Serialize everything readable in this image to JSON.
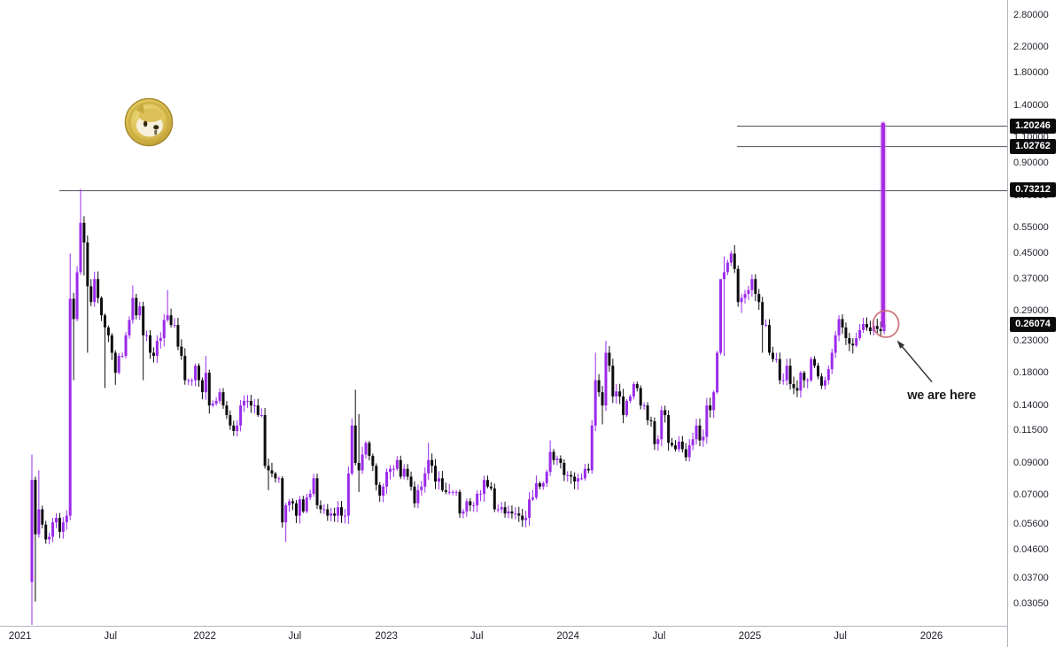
{
  "annotations": {
    "we_are_here": "we are here"
  },
  "axis": {
    "y_ticks": [
      {
        "label": "2.80000",
        "value": 2.8
      },
      {
        "label": "2.20000",
        "value": 2.2
      },
      {
        "label": "1.80000",
        "value": 1.8
      },
      {
        "label": "1.40000",
        "value": 1.4
      },
      {
        "label": "1.10000",
        "value": 1.1
      },
      {
        "label": "0.90000",
        "value": 0.9
      },
      {
        "label": "0.70000",
        "value": 0.7
      },
      {
        "label": "0.55000",
        "value": 0.55
      },
      {
        "label": "0.45000",
        "value": 0.45
      },
      {
        "label": "0.37000",
        "value": 0.37
      },
      {
        "label": "0.29000",
        "value": 0.29
      },
      {
        "label": "0.23000",
        "value": 0.23
      },
      {
        "label": "0.18000",
        "value": 0.18
      },
      {
        "label": "0.14000",
        "value": 0.14
      },
      {
        "label": "0.11500",
        "value": 0.115
      },
      {
        "label": "0.09000",
        "value": 0.09
      },
      {
        "label": "0.07000",
        "value": 0.07
      },
      {
        "label": "0.05600",
        "value": 0.056
      },
      {
        "label": "0.04600",
        "value": 0.046
      },
      {
        "label": "0.03700",
        "value": 0.037
      },
      {
        "label": "0.03050",
        "value": 0.0305
      }
    ],
    "x_ticks": [
      {
        "label": "2021",
        "week": -3.4
      },
      {
        "label": "Jul",
        "week": 22.6
      },
      {
        "label": "2022",
        "week": 49.7
      },
      {
        "label": "Jul",
        "week": 75.6
      },
      {
        "label": "2023",
        "week": 101.9
      },
      {
        "label": "Jul",
        "week": 127.9
      },
      {
        "label": "2024",
        "week": 154.1
      },
      {
        "label": "Jul",
        "week": 180.3
      },
      {
        "label": "2025",
        "week": 206.4
      },
      {
        "label": "Jul",
        "week": 232.4
      },
      {
        "label": "2026",
        "week": 258.6
      }
    ]
  },
  "chart_data": {
    "type": "candlestick",
    "scale": "log",
    "interval": "1W",
    "ylim": [
      0.0252,
      3.1
    ],
    "grid": false,
    "price_lines": [
      {
        "label": "1.20246",
        "value": 1.20246,
        "start_week": 202.7
      },
      {
        "label": "1.02762",
        "value": 1.02762,
        "start_week": 202.7
      },
      {
        "label": "0.73212",
        "value": 0.73212,
        "start_week": 7.9
      }
    ],
    "last_price": {
      "label": "0.26074",
      "value": 0.26074
    },
    "projection": {
      "from_price": 0.258,
      "to_price": 1.215,
      "week": 244.7
    },
    "highlight_circle": {
      "price": 0.262,
      "week": 245.5,
      "radius_px": 14.5
    },
    "first_open": 0.036,
    "weekly_closes": [
      0.079,
      0.052,
      0.063,
      0.056,
      0.05,
      0.051,
      0.057,
      0.059,
      0.053,
      0.057,
      0.06,
      0.318,
      0.272,
      0.39,
      0.57,
      0.49,
      0.35,
      0.31,
      0.37,
      0.32,
      0.28,
      0.255,
      0.24,
      0.21,
      0.18,
      0.205,
      0.205,
      0.24,
      0.27,
      0.32,
      0.28,
      0.3,
      0.24,
      0.24,
      0.21,
      0.205,
      0.23,
      0.235,
      0.27,
      0.28,
      0.26,
      0.26,
      0.22,
      0.205,
      0.17,
      0.17,
      0.17,
      0.19,
      0.17,
      0.155,
      0.18,
      0.14,
      0.142,
      0.145,
      0.155,
      0.14,
      0.13,
      0.12,
      0.115,
      0.12,
      0.14,
      0.145,
      0.145,
      0.14,
      0.14,
      0.13,
      0.13,
      0.088,
      0.085,
      0.083,
      0.08,
      0.08,
      0.057,
      0.065,
      0.067,
      0.066,
      0.06,
      0.068,
      0.062,
      0.069,
      0.071,
      0.08,
      0.065,
      0.063,
      0.063,
      0.06,
      0.061,
      0.06,
      0.064,
      0.06,
      0.06,
      0.083,
      0.12,
      0.09,
      0.085,
      0.096,
      0.105,
      0.095,
      0.088,
      0.076,
      0.07,
      0.075,
      0.084,
      0.086,
      0.086,
      0.092,
      0.081,
      0.086,
      0.081,
      0.075,
      0.066,
      0.073,
      0.075,
      0.083,
      0.092,
      0.088,
      0.078,
      0.08,
      0.073,
      0.072,
      0.072,
      0.072,
      0.072,
      0.061,
      0.062,
      0.067,
      0.065,
      0.065,
      0.071,
      0.071,
      0.079,
      0.075,
      0.074,
      0.063,
      0.063,
      0.064,
      0.061,
      0.062,
      0.061,
      0.061,
      0.06,
      0.058,
      0.059,
      0.068,
      0.069,
      0.077,
      0.075,
      0.077,
      0.084,
      0.098,
      0.092,
      0.093,
      0.09,
      0.082,
      0.082,
      0.081,
      0.078,
      0.08,
      0.08,
      0.086,
      0.085,
      0.12,
      0.17,
      0.155,
      0.14,
      0.21,
      0.19,
      0.15,
      0.156,
      0.15,
      0.13,
      0.145,
      0.15,
      0.165,
      0.16,
      0.14,
      0.14,
      0.125,
      0.124,
      0.104,
      0.108,
      0.135,
      0.13,
      0.105,
      0.103,
      0.1,
      0.106,
      0.1,
      0.094,
      0.103,
      0.108,
      0.12,
      0.107,
      0.11,
      0.14,
      0.135,
      0.155,
      0.21,
      0.37,
      0.39,
      0.42,
      0.45,
      0.4,
      0.31,
      0.32,
      0.33,
      0.34,
      0.37,
      0.33,
      0.31,
      0.26,
      0.26,
      0.21,
      0.2,
      0.2,
      0.17,
      0.17,
      0.19,
      0.165,
      0.16,
      0.157,
      0.18,
      0.17,
      0.17,
      0.2,
      0.19,
      0.175,
      0.163,
      0.17,
      0.185,
      0.21,
      0.24,
      0.272,
      0.255,
      0.235,
      0.225,
      0.222,
      0.235,
      0.25,
      0.262,
      0.255,
      0.248,
      0.258,
      0.252,
      0.248,
      0.26074
    ],
    "wick_overrides": {
      "0": {
        "h": 0.096,
        "l": 0.02
      },
      "1": {
        "l": 0.031
      },
      "2": {
        "h": 0.085
      },
      "11": {
        "h": 0.45,
        "l": 0.058
      },
      "12": {
        "l": 0.17
      },
      "14": {
        "h": 0.739
      },
      "15": {
        "l": 0.38
      },
      "16": {
        "l": 0.21
      },
      "21": {
        "l": 0.16
      },
      "24": {
        "l": 0.164
      },
      "29": {
        "h": 0.352
      },
      "32": {
        "l": 0.17
      },
      "39": {
        "h": 0.34
      },
      "50": {
        "h": 0.205
      },
      "68": {
        "l": 0.073
      },
      "73": {
        "l": 0.049
      },
      "93": {
        "h": 0.158
      },
      "94": {
        "h": 0.131,
        "l": 0.072
      },
      "114": {
        "h": 0.105
      },
      "149": {
        "h": 0.107
      },
      "162": {
        "h": 0.21,
        "l": 0.115
      },
      "164": {
        "l": 0.121
      },
      "165": {
        "h": 0.23
      },
      "198": {
        "h": 0.24
      },
      "199": {
        "h": 0.44,
        "l": 0.205
      },
      "202": {
        "h": 0.48
      },
      "204": {
        "l": 0.285
      },
      "210": {
        "l": 0.21
      },
      "232": {
        "h": 0.28
      },
      "245": {
        "h": 0.272,
        "l": 0.242
      }
    },
    "colors": {
      "up": "#9b2beb",
      "down": "#0d0d11",
      "projection": "#a62ce2",
      "projection_halo": "#e07bf2",
      "circle": "#c96a72",
      "line": "#50525c",
      "arrow": "#333333",
      "badge_bg": "#0b0b0d",
      "coin_gold": "#d9bc4e"
    }
  }
}
